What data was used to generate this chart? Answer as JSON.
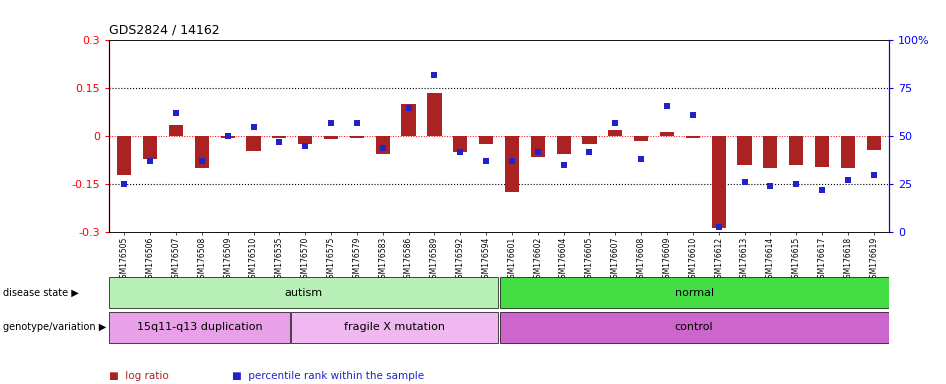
{
  "title": "GDS2824 / 14162",
  "samples": [
    "GSM176505",
    "GSM176506",
    "GSM176507",
    "GSM176508",
    "GSM176509",
    "GSM176510",
    "GSM176535",
    "GSM176570",
    "GSM176575",
    "GSM176579",
    "GSM176583",
    "GSM176586",
    "GSM176589",
    "GSM176592",
    "GSM176594",
    "GSM176601",
    "GSM176602",
    "GSM176604",
    "GSM176605",
    "GSM176607",
    "GSM176608",
    "GSM176609",
    "GSM176610",
    "GSM176612",
    "GSM176613",
    "GSM176614",
    "GSM176615",
    "GSM176617",
    "GSM176618",
    "GSM176619"
  ],
  "log_ratio": [
    -0.12,
    -0.07,
    0.035,
    -0.1,
    -0.005,
    -0.045,
    -0.005,
    -0.025,
    -0.008,
    -0.005,
    -0.055,
    0.1,
    0.135,
    -0.05,
    -0.025,
    -0.175,
    -0.065,
    -0.055,
    -0.025,
    0.02,
    -0.015,
    0.015,
    -0.005,
    -0.285,
    -0.09,
    -0.1,
    -0.09,
    -0.095,
    -0.1,
    -0.042
  ],
  "percentile": [
    25,
    37,
    62,
    37,
    50,
    55,
    47,
    45,
    57,
    57,
    44,
    65,
    82,
    42,
    37,
    37,
    42,
    35,
    42,
    57,
    38,
    66,
    61,
    3,
    26,
    24,
    25,
    22,
    27,
    30
  ],
  "disease_state_groups": [
    {
      "label": "autism",
      "start": 0,
      "end": 14,
      "color": "#b8f0b8"
    },
    {
      "label": "normal",
      "start": 15,
      "end": 29,
      "color": "#44dd44"
    }
  ],
  "genotype_groups": [
    {
      "label": "15q11-q13 duplication",
      "start": 0,
      "end": 6,
      "color": "#e8a0e8"
    },
    {
      "label": "fragile X mutation",
      "start": 7,
      "end": 14,
      "color": "#f0b8f0"
    },
    {
      "label": "control",
      "start": 15,
      "end": 29,
      "color": "#cc66cc"
    }
  ],
  "bar_color": "#aa2222",
  "dot_color": "#2222cc",
  "ylim_left": [
    -0.3,
    0.3
  ],
  "ylim_right": [
    0,
    100
  ],
  "hlines_dotted": [
    0.15,
    -0.15
  ],
  "hline_zero": 0.0,
  "left_yticks": [
    -0.3,
    -0.15,
    0.0,
    0.15,
    0.3
  ],
  "right_yticks": [
    0,
    25,
    50,
    75,
    100
  ],
  "right_yticklabels": [
    "0",
    "25",
    "50",
    "75",
    "100%"
  ],
  "bg_color": "#ffffff"
}
